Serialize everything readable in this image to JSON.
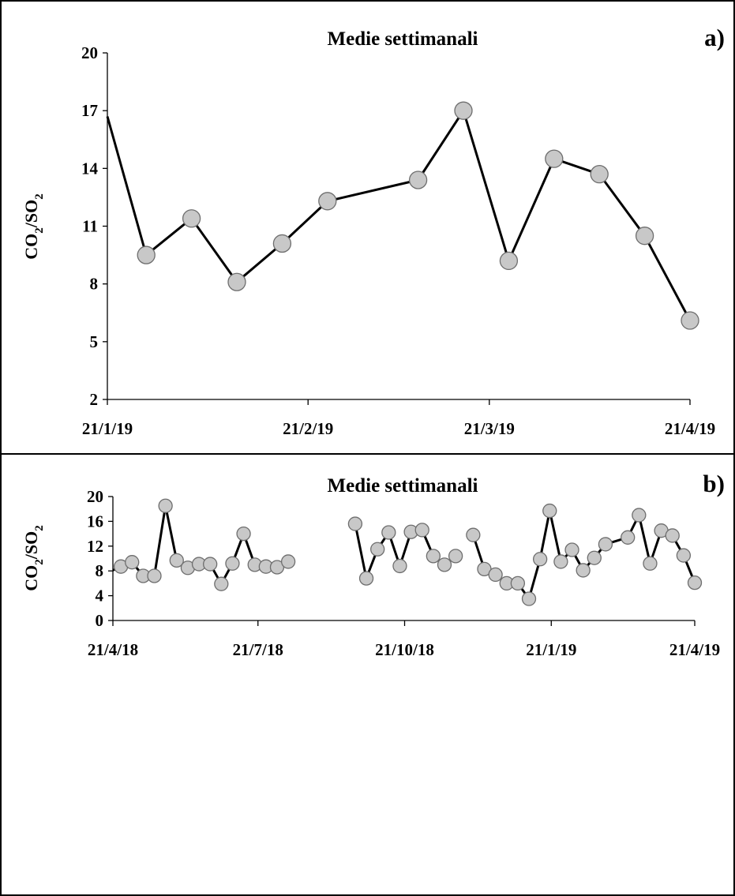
{
  "chart_data": [
    {
      "type": "line",
      "title": "Medie settimanali",
      "panel_label": "a)",
      "ylabel": "CO2/SO2",
      "ylim": [
        2,
        20
      ],
      "yticks": [
        "2",
        "5",
        "8",
        "11",
        "14",
        "17",
        "20"
      ],
      "xlim": [
        "2019-01-21",
        "2019-04-21"
      ],
      "xticks": [
        {
          "date": "2019-01-21",
          "label": "21/1/19"
        },
        {
          "date": "2019-02-21",
          "label": "21/2/19"
        },
        {
          "date": "2019-03-21",
          "label": "21/3/19"
        },
        {
          "date": "2019-04-21",
          "label": "21/4/19"
        }
      ],
      "marker_color": "#c8c8c8",
      "line_color": "#000000",
      "series": [
        {
          "points": [
            {
              "x": "2019-01-21",
              "y": 16.7,
              "marker": false
            },
            {
              "x": "2019-01-27",
              "y": 9.5
            },
            {
              "x": "2019-02-03",
              "y": 11.4
            },
            {
              "x": "2019-02-10",
              "y": 8.1
            },
            {
              "x": "2019-02-17",
              "y": 10.1
            },
            {
              "x": "2019-02-24",
              "y": 12.3
            },
            {
              "x": "2019-03-10",
              "y": 13.4
            },
            {
              "x": "2019-03-17",
              "y": 17.0
            },
            {
              "x": "2019-03-24",
              "y": 9.2
            },
            {
              "x": "2019-03-31",
              "y": 14.5
            },
            {
              "x": "2019-04-07",
              "y": 13.7
            },
            {
              "x": "2019-04-14",
              "y": 10.5
            },
            {
              "x": "2019-04-21",
              "y": 6.1
            }
          ]
        }
      ]
    },
    {
      "type": "line",
      "title": "Medie settimanali",
      "panel_label": "b)",
      "ylabel": "CO2/SO2",
      "ylim": [
        0,
        20
      ],
      "yticks": [
        "0",
        "4",
        "8",
        "12",
        "16",
        "20"
      ],
      "xlim": [
        "2018-04-21",
        "2019-04-21"
      ],
      "xticks": [
        {
          "date": "2018-04-21",
          "label": "21/4/18"
        },
        {
          "date": "2018-07-21",
          "label": "21/7/18"
        },
        {
          "date": "2018-10-21",
          "label": "21/10/18"
        },
        {
          "date": "2019-01-21",
          "label": "21/1/19"
        },
        {
          "date": "2019-04-21",
          "label": "21/4/19"
        }
      ],
      "marker_color": "#c8c8c8",
      "line_color": "#000000",
      "series": [
        {
          "points": [
            {
              "x": "2018-04-21",
              "y": 8.1,
              "marker": false
            },
            {
              "x": "2018-04-26",
              "y": 8.7
            },
            {
              "x": "2018-05-03",
              "y": 9.4
            },
            {
              "x": "2018-05-10",
              "y": 7.2
            },
            {
              "x": "2018-05-17",
              "y": 7.2
            },
            {
              "x": "2018-05-24",
              "y": 18.5
            },
            {
              "x": "2018-05-31",
              "y": 9.7
            },
            {
              "x": "2018-06-07",
              "y": 8.5
            },
            {
              "x": "2018-06-14",
              "y": 9.1
            },
            {
              "x": "2018-06-21",
              "y": 9.1
            },
            {
              "x": "2018-06-28",
              "y": 5.9
            },
            {
              "x": "2018-07-05",
              "y": 9.2
            },
            {
              "x": "2018-07-12",
              "y": 14.0
            },
            {
              "x": "2018-07-19",
              "y": 9.0
            },
            {
              "x": "2018-07-26",
              "y": 8.7
            },
            {
              "x": "2018-08-02",
              "y": 8.6
            },
            {
              "x": "2018-08-09",
              "y": 9.5
            }
          ]
        },
        {
          "points": [
            {
              "x": "2018-09-20",
              "y": 15.6
            },
            {
              "x": "2018-09-27",
              "y": 6.8
            },
            {
              "x": "2018-10-04",
              "y": 11.5
            },
            {
              "x": "2018-10-11",
              "y": 14.2
            },
            {
              "x": "2018-10-18",
              "y": 8.8
            },
            {
              "x": "2018-10-25",
              "y": 14.3
            },
            {
              "x": "2018-11-01",
              "y": 14.6
            },
            {
              "x": "2018-11-08",
              "y": 10.4
            },
            {
              "x": "2018-11-15",
              "y": 9.0
            },
            {
              "x": "2018-11-22",
              "y": 10.4
            }
          ]
        },
        {
          "points": [
            {
              "x": "2018-12-03",
              "y": 13.8
            },
            {
              "x": "2018-12-10",
              "y": 8.3
            },
            {
              "x": "2018-12-17",
              "y": 7.4
            },
            {
              "x": "2018-12-24",
              "y": 6.0
            },
            {
              "x": "2018-12-31",
              "y": 6.0
            },
            {
              "x": "2019-01-07",
              "y": 3.5
            },
            {
              "x": "2019-01-14",
              "y": 9.9
            },
            {
              "x": "2019-01-20",
              "y": 17.7
            },
            {
              "x": "2019-01-27",
              "y": 9.5
            },
            {
              "x": "2019-02-03",
              "y": 11.4
            },
            {
              "x": "2019-02-10",
              "y": 8.1
            },
            {
              "x": "2019-02-17",
              "y": 10.1
            },
            {
              "x": "2019-02-24",
              "y": 12.3
            },
            {
              "x": "2019-03-10",
              "y": 13.4
            },
            {
              "x": "2019-03-17",
              "y": 17.0
            },
            {
              "x": "2019-03-24",
              "y": 9.2
            },
            {
              "x": "2019-03-31",
              "y": 14.5
            },
            {
              "x": "2019-04-07",
              "y": 13.7
            },
            {
              "x": "2019-04-14",
              "y": 10.5
            },
            {
              "x": "2019-04-21",
              "y": 6.1
            }
          ]
        }
      ]
    }
  ]
}
